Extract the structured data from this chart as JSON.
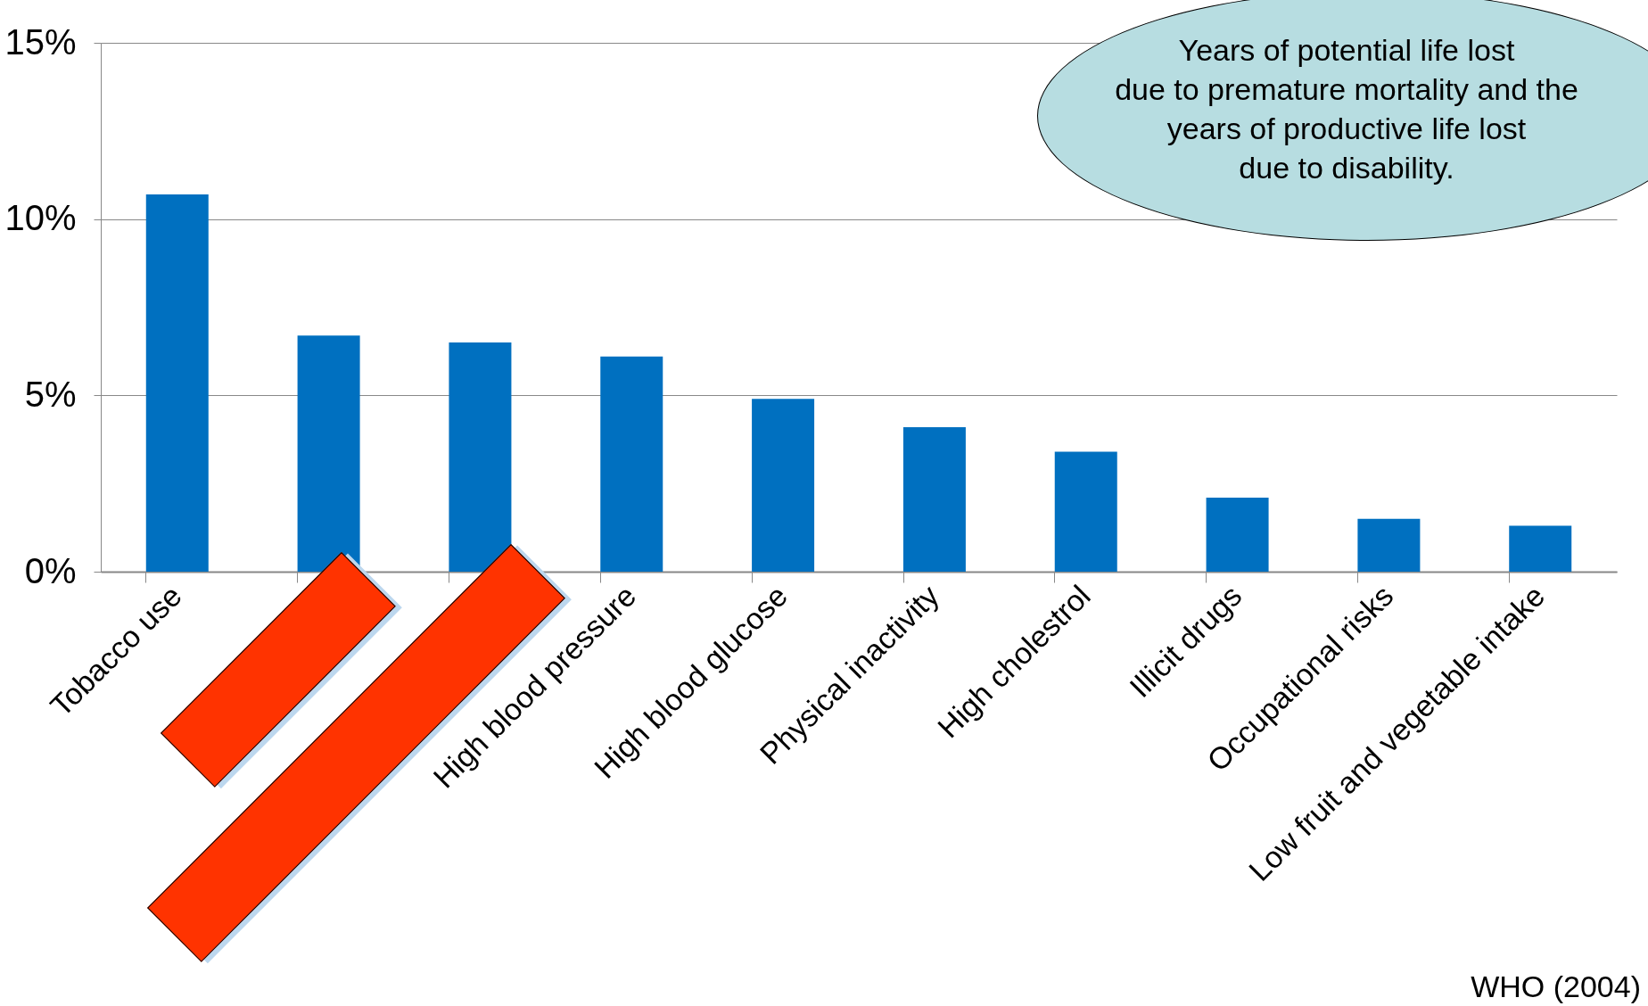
{
  "chart_data": {
    "type": "bar",
    "categories": [
      "Tobacco use",
      null,
      null,
      "High blood pressure",
      "High blood glucose",
      "Physical inactivity",
      "High cholestrol",
      "Illicit drugs",
      "Occupational risks",
      "Low fruit and vegetable intake"
    ],
    "values": [
      10.7,
      6.7,
      6.5,
      6.1,
      4.9,
      4.1,
      3.4,
      2.1,
      1.5,
      1.3
    ],
    "color": "#0070c0",
    "ylim": [
      0,
      15
    ],
    "yticks": [
      {
        "value": 0,
        "label": "0%"
      },
      {
        "value": 5,
        "label": "5%"
      },
      {
        "value": 10,
        "label": "10%"
      },
      {
        "value": 15,
        "label": "15%"
      }
    ],
    "grid": "y",
    "annotations": [
      "Years of potential life lost\ndue to premature mortality and the\nyears of productive life lost\ndue to disability.",
      "WHO (2004)"
    ]
  }
}
